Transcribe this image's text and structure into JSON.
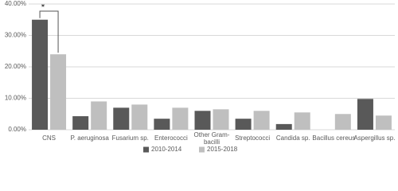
{
  "chart_data": {
    "type": "bar",
    "categories": [
      "CNS",
      "P. aeruginosa",
      "Fusarium sp.",
      "Enterococci",
      "Other Gram-bacilli",
      "Streptococci",
      "Candida sp.",
      "Bacillus cereus",
      "Aspergillus sp."
    ],
    "series": [
      {
        "name": "2010-2014",
        "color": "#595959",
        "values": [
          35,
          4.3,
          7,
          3.5,
          6,
          3.5,
          1.8,
          0,
          9.8
        ]
      },
      {
        "name": "2015-2018",
        "color": "#bfbfbf",
        "values": [
          24,
          9,
          8,
          7,
          6.5,
          6,
          5.5,
          5,
          4.5
        ]
      }
    ],
    "ylim": [
      0,
      40
    ],
    "yticks": [
      {
        "value": 0,
        "label": "0.00%"
      },
      {
        "value": 10,
        "label": "10.00%"
      },
      {
        "value": 20,
        "label": "20.00%"
      },
      {
        "value": 30,
        "label": "30.00%"
      },
      {
        "value": 40,
        "label": "40.00%"
      }
    ],
    "grid": true,
    "legend": "bottom",
    "annotation": "*"
  }
}
